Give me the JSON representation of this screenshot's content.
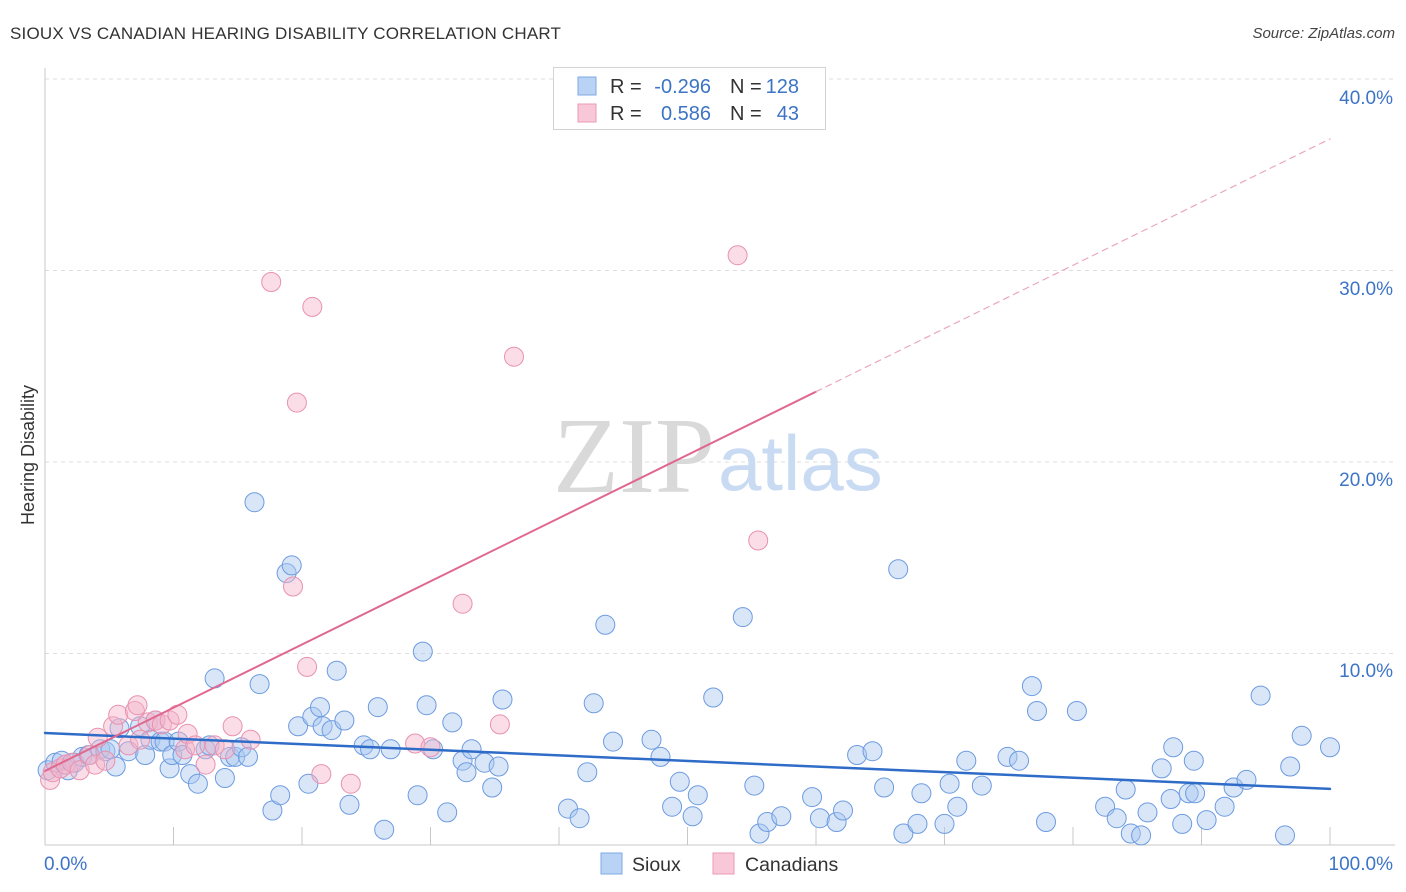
{
  "watermark": {
    "zip": "ZIP",
    "atlas": "atlas"
  },
  "legend": {
    "stats": [
      {
        "r_label": "R =",
        "r_value": "-0.296",
        "n_label": "N =",
        "n_value": "128"
      },
      {
        "r_label": "R =",
        "r_value": "0.586",
        "n_label": "N =",
        "n_value": "43"
      }
    ]
  },
  "colors": {
    "series_fill": [
      "#a8c7ef",
      "#f4b4ca"
    ],
    "series_stroke": [
      "#6d9be0",
      "#e892b0"
    ],
    "swatch_fill": [
      "#b9d3f5",
      "#f9c8d8"
    ],
    "trend": [
      "#2f6cc8",
      "#e0688f"
    ],
    "trend_dashed": "#eba7bf",
    "grid": "#dcdcdc",
    "axis": "#c8c8c8"
  },
  "chart_data": {
    "type": "scatter",
    "title": "SIOUX VS CANADIAN HEARING DISABILITY CORRELATION CHART",
    "source": "Source: ZipAtlas.com",
    "ylabel": "Hearing Disability",
    "xlim": [
      0,
      100
    ],
    "ylim": [
      0,
      40
    ],
    "grid": true,
    "x_tick_values": [
      10,
      20,
      30,
      40,
      50,
      60,
      70,
      80,
      90,
      100
    ],
    "x_tick_labels": {
      "min": "0.0%",
      "max": "100.0%"
    },
    "y_ticks": [
      10,
      20,
      30,
      40
    ],
    "y_tick_labels": [
      "10.0%",
      "20.0%",
      "30.0%",
      "40.0%"
    ],
    "series": [
      {
        "name": "Sioux",
        "points": [
          [
            0.2,
            3.9
          ],
          [
            0.8,
            4.3
          ],
          [
            1.3,
            4.4
          ],
          [
            1.8,
            3.9
          ],
          [
            2.3,
            4.3
          ],
          [
            2.9,
            4.6
          ],
          [
            3.4,
            4.7
          ],
          [
            4.3,
            5.0
          ],
          [
            4.7,
            4.9
          ],
          [
            5.1,
            5.0
          ],
          [
            5.5,
            4.1
          ],
          [
            5.8,
            6.1
          ],
          [
            6.5,
            4.9
          ],
          [
            7.4,
            6.2
          ],
          [
            7.8,
            4.7
          ],
          [
            8.2,
            5.5
          ],
          [
            8.6,
            6.5
          ],
          [
            9.0,
            5.4
          ],
          [
            9.3,
            5.4
          ],
          [
            9.7,
            4.0
          ],
          [
            9.9,
            4.7
          ],
          [
            10.4,
            5.4
          ],
          [
            10.7,
            4.7
          ],
          [
            11.3,
            3.7
          ],
          [
            11.9,
            3.2
          ],
          [
            12.5,
            5.0
          ],
          [
            12.8,
            5.2
          ],
          [
            13.2,
            8.7
          ],
          [
            14.0,
            3.5
          ],
          [
            14.4,
            4.6
          ],
          [
            14.8,
            4.6
          ],
          [
            15.3,
            5.1
          ],
          [
            15.8,
            4.6
          ],
          [
            16.3,
            17.9
          ],
          [
            16.7,
            8.4
          ],
          [
            17.7,
            1.8
          ],
          [
            18.3,
            2.6
          ],
          [
            18.8,
            14.2
          ],
          [
            19.2,
            14.6
          ],
          [
            19.7,
            6.2
          ],
          [
            20.5,
            3.2
          ],
          [
            20.8,
            6.7
          ],
          [
            21.4,
            7.2
          ],
          [
            21.6,
            6.2
          ],
          [
            22.3,
            6.0
          ],
          [
            22.7,
            9.1
          ],
          [
            23.3,
            6.5
          ],
          [
            23.7,
            2.1
          ],
          [
            24.8,
            5.2
          ],
          [
            25.3,
            5.0
          ],
          [
            25.9,
            7.2
          ],
          [
            26.4,
            0.8
          ],
          [
            26.9,
            5.0
          ],
          [
            29.0,
            2.6
          ],
          [
            29.4,
            10.1
          ],
          [
            29.7,
            7.3
          ],
          [
            30.2,
            5.0
          ],
          [
            31.3,
            1.7
          ],
          [
            31.7,
            6.4
          ],
          [
            32.5,
            4.4
          ],
          [
            32.8,
            3.8
          ],
          [
            33.2,
            5.0
          ],
          [
            34.2,
            4.3
          ],
          [
            34.8,
            3.0
          ],
          [
            35.3,
            4.1
          ],
          [
            35.6,
            7.6
          ],
          [
            40.7,
            1.9
          ],
          [
            41.6,
            1.4
          ],
          [
            42.2,
            3.8
          ],
          [
            42.7,
            7.4
          ],
          [
            43.6,
            11.5
          ],
          [
            44.2,
            5.4
          ],
          [
            47.2,
            5.5
          ],
          [
            47.9,
            4.6
          ],
          [
            48.8,
            2.0
          ],
          [
            49.4,
            3.3
          ],
          [
            50.4,
            1.5
          ],
          [
            50.8,
            2.6
          ],
          [
            52.0,
            7.7
          ],
          [
            54.3,
            11.9
          ],
          [
            55.2,
            3.1
          ],
          [
            55.6,
            0.6
          ],
          [
            56.2,
            1.2
          ],
          [
            57.3,
            1.5
          ],
          [
            59.7,
            2.5
          ],
          [
            60.3,
            1.4
          ],
          [
            61.6,
            1.2
          ],
          [
            62.1,
            1.8
          ],
          [
            63.2,
            4.7
          ],
          [
            64.4,
            4.9
          ],
          [
            65.3,
            3.0
          ],
          [
            66.4,
            14.4
          ],
          [
            66.8,
            0.6
          ],
          [
            67.9,
            1.1
          ],
          [
            68.2,
            2.7
          ],
          [
            70.0,
            1.1
          ],
          [
            70.4,
            3.2
          ],
          [
            71.0,
            2.0
          ],
          [
            71.7,
            4.4
          ],
          [
            72.9,
            3.1
          ],
          [
            74.9,
            4.6
          ],
          [
            75.8,
            4.4
          ],
          [
            76.8,
            8.3
          ],
          [
            77.2,
            7.0
          ],
          [
            77.9,
            1.2
          ],
          [
            80.3,
            7.0
          ],
          [
            82.5,
            2.0
          ],
          [
            83.4,
            1.4
          ],
          [
            84.1,
            2.9
          ],
          [
            84.5,
            0.6
          ],
          [
            85.3,
            0.5
          ],
          [
            85.8,
            1.7
          ],
          [
            86.9,
            4.0
          ],
          [
            87.6,
            2.4
          ],
          [
            87.8,
            5.1
          ],
          [
            88.5,
            1.1
          ],
          [
            89.0,
            2.7
          ],
          [
            89.4,
            4.4
          ],
          [
            89.5,
            2.7
          ],
          [
            90.4,
            1.3
          ],
          [
            91.8,
            2.0
          ],
          [
            92.5,
            3.0
          ],
          [
            93.5,
            3.4
          ],
          [
            94.6,
            7.8
          ],
          [
            96.5,
            0.5
          ],
          [
            96.9,
            4.1
          ],
          [
            97.8,
            5.7
          ],
          [
            100.0,
            5.1
          ]
        ]
      },
      {
        "name": "Canadians",
        "points": [
          [
            0.4,
            3.4
          ],
          [
            0.6,
            3.8
          ],
          [
            1.2,
            4.0
          ],
          [
            1.6,
            4.2
          ],
          [
            2.1,
            4.3
          ],
          [
            2.7,
            3.9
          ],
          [
            3.5,
            4.7
          ],
          [
            3.9,
            4.2
          ],
          [
            4.1,
            5.6
          ],
          [
            4.7,
            4.4
          ],
          [
            5.3,
            6.2
          ],
          [
            5.7,
            6.8
          ],
          [
            6.5,
            5.2
          ],
          [
            7.0,
            7.0
          ],
          [
            7.2,
            7.3
          ],
          [
            7.4,
            5.5
          ],
          [
            8.0,
            6.4
          ],
          [
            8.6,
            6.5
          ],
          [
            9.1,
            6.3
          ],
          [
            9.7,
            6.5
          ],
          [
            10.3,
            6.8
          ],
          [
            10.9,
            5.0
          ],
          [
            11.1,
            5.8
          ],
          [
            11.7,
            5.2
          ],
          [
            12.5,
            4.2
          ],
          [
            13.2,
            5.2
          ],
          [
            14.0,
            5.0
          ],
          [
            14.6,
            6.2
          ],
          [
            16.0,
            5.5
          ],
          [
            17.6,
            29.4
          ],
          [
            19.3,
            13.5
          ],
          [
            19.6,
            23.1
          ],
          [
            20.4,
            9.3
          ],
          [
            20.8,
            28.1
          ],
          [
            21.5,
            3.7
          ],
          [
            23.8,
            3.2
          ],
          [
            28.8,
            5.3
          ],
          [
            30.0,
            5.1
          ],
          [
            32.5,
            12.6
          ],
          [
            35.4,
            6.3
          ],
          [
            36.5,
            25.5
          ],
          [
            53.9,
            30.8
          ],
          [
            55.5,
            15.9
          ]
        ]
      }
    ],
    "trend_lines": [
      {
        "series_index": 0,
        "segments": [
          {
            "x": [
              0,
              100
            ],
            "y": [
              5.85,
              2.93
            ],
            "dashed": false
          }
        ]
      },
      {
        "series_index": 1,
        "segments": [
          {
            "x": [
              0,
              60
            ],
            "y": [
              3.87,
              23.67
            ],
            "dashed": false
          },
          {
            "x": [
              60,
              100
            ],
            "y": [
              23.67,
              36.87
            ],
            "dashed": true
          }
        ]
      }
    ]
  }
}
